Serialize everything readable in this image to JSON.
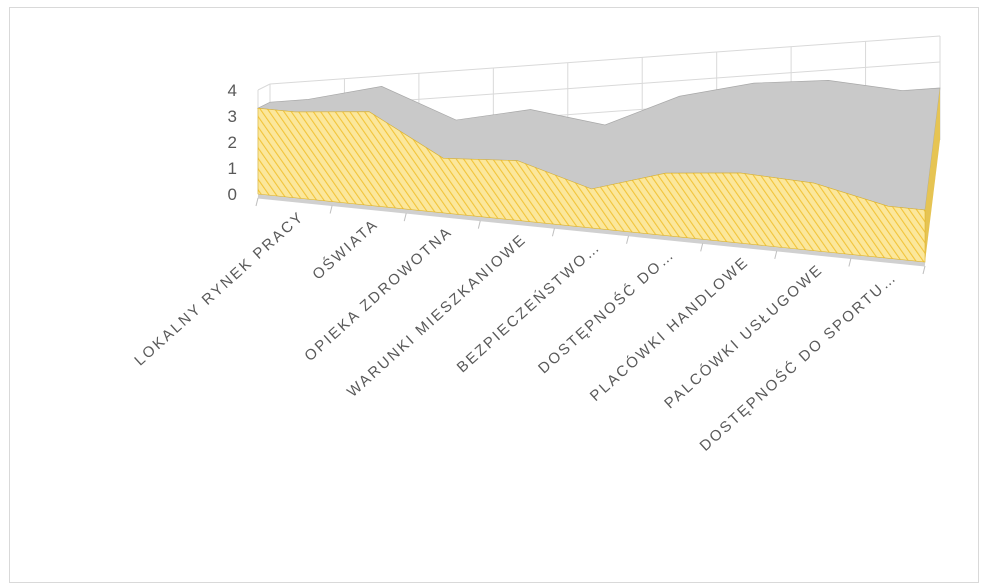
{
  "chart_data": {
    "type": "area",
    "view": "3d",
    "categories": [
      "LOKALNY RYNEK PRACY",
      "OŚWIATA",
      "OPIEKA ZDROWOTNA",
      "WARUNKI MIESZKANIOWE",
      "BEZPIECZEŃSTWO…",
      "DOSTĘPNOŚĆ DO…",
      "PLACÓWKI HANDLOWE",
      "PALCÓWKI USŁUGOWE",
      "DOSTĘPNOŚĆ DO SPORTU…"
    ],
    "series": [
      {
        "values": [
          3.3,
          3.6,
          2.1,
          2.3,
          1.5,
          2.4,
          2.7,
          2.6,
          2.0
        ]
      }
    ],
    "y_ticks": [
      "0",
      "1",
      "2",
      "3",
      "4"
    ],
    "ylim": [
      0,
      4
    ],
    "grid": true,
    "legend": "none",
    "colors": {
      "fill": "#fbe79c",
      "hatch": "#f2c43a",
      "top_band": "#c9c9c9",
      "grid": "#d9d9d9",
      "floor": "#d0d0d0"
    }
  }
}
